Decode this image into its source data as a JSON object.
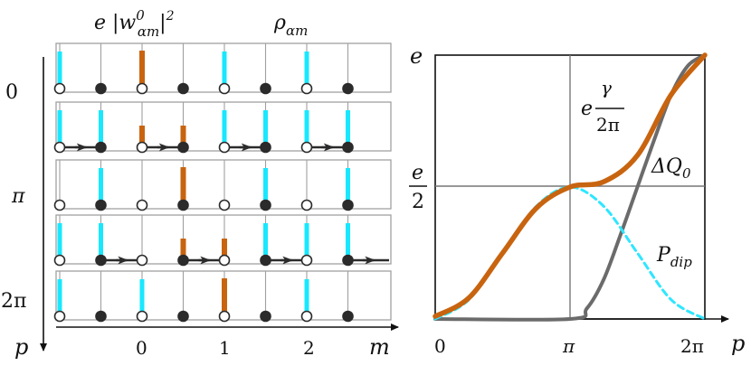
{
  "colors": {
    "orange": "#c8640f",
    "cyan": "#18e8ff",
    "cyan_dash": "#2ee6ff",
    "dark": "#2b2b2b",
    "gray": "#6b6b6b",
    "panel": "#a0a0a0"
  },
  "left_panel": {
    "title_left_pre": "e |w",
    "title_left_sup": "0",
    "title_left_sub": "αm",
    "title_left_post": "|",
    "title_left_exp": "2",
    "title_right": "ρ",
    "title_right_sub": "αm",
    "y_axis": {
      "label": "p",
      "ticks": [
        "0",
        "π",
        "2π"
      ]
    },
    "x_axis": {
      "label": "m",
      "ticks": [
        "0",
        "1",
        "2"
      ]
    },
    "row_phases": [
      "0",
      "π/2",
      "π",
      "3π/2",
      "2π"
    ],
    "rows": [
      {
        "orange": [
          0.0
        ],
        "cyan": [
          -1.0,
          1.0,
          2.0
        ],
        "arrows": false
      },
      {
        "orange": [
          0.0,
          0.5
        ],
        "cyan": [
          -1.0,
          -0.5,
          1.0,
          1.5,
          2.0,
          2.5
        ],
        "arrows": true
      },
      {
        "orange": [
          0.5
        ],
        "cyan": [
          -0.5,
          1.5,
          2.5
        ],
        "arrows": false
      },
      {
        "orange": [
          0.5,
          1.0
        ],
        "cyan": [
          -1.0,
          -0.5,
          1.5,
          2.0,
          2.5
        ],
        "arrows": true
      },
      {
        "orange": [
          1.0
        ],
        "cyan": [
          -1.0,
          0.0,
          2.0
        ],
        "arrows": false
      }
    ]
  },
  "chart_data": {
    "type": "line",
    "title": "",
    "xlabel": "p",
    "ylabel": "",
    "x_ticks": [
      "0",
      "π",
      "2π"
    ],
    "y_ticks_top": "e",
    "y_tick_half_num": "e",
    "y_tick_half_den": "2",
    "xlim": [
      0,
      6.2832
    ],
    "ylim": [
      0,
      1
    ],
    "series": [
      {
        "name": "e γ/2π",
        "label_pre": "e",
        "label_num": "γ",
        "label_den": "2π",
        "style": "solid-orange",
        "points": [
          [
            0,
            0.01
          ],
          [
            0.785,
            0.08
          ],
          [
            1.571,
            0.25
          ],
          [
            2.356,
            0.42
          ],
          [
            3.1416,
            0.5
          ],
          [
            3.927,
            0.52
          ],
          [
            4.712,
            0.62
          ],
          [
            5.498,
            0.85
          ],
          [
            6.2832,
            1.0
          ]
        ]
      },
      {
        "name": "ΔQ0",
        "label_pre": "ΔQ",
        "label_sub": "0",
        "style": "solid-gray",
        "points": [
          [
            0,
            0
          ],
          [
            3.1416,
            0
          ],
          [
            3.534,
            0.04
          ],
          [
            3.927,
            0.15
          ],
          [
            4.32,
            0.32
          ],
          [
            4.712,
            0.5
          ],
          [
            5.105,
            0.68
          ],
          [
            5.498,
            0.85
          ],
          [
            5.89,
            0.96
          ],
          [
            6.2832,
            1.0
          ]
        ]
      },
      {
        "name": "P_dip",
        "label_pre": "P",
        "label_sub": "dip",
        "style": "dashed-cyan",
        "points": [
          [
            0,
            0
          ],
          [
            0.785,
            0.073
          ],
          [
            1.571,
            0.25
          ],
          [
            2.356,
            0.427
          ],
          [
            3.1416,
            0.5
          ],
          [
            3.927,
            0.427
          ],
          [
            4.712,
            0.25
          ],
          [
            5.498,
            0.073
          ],
          [
            6.2832,
            0
          ]
        ]
      }
    ]
  }
}
